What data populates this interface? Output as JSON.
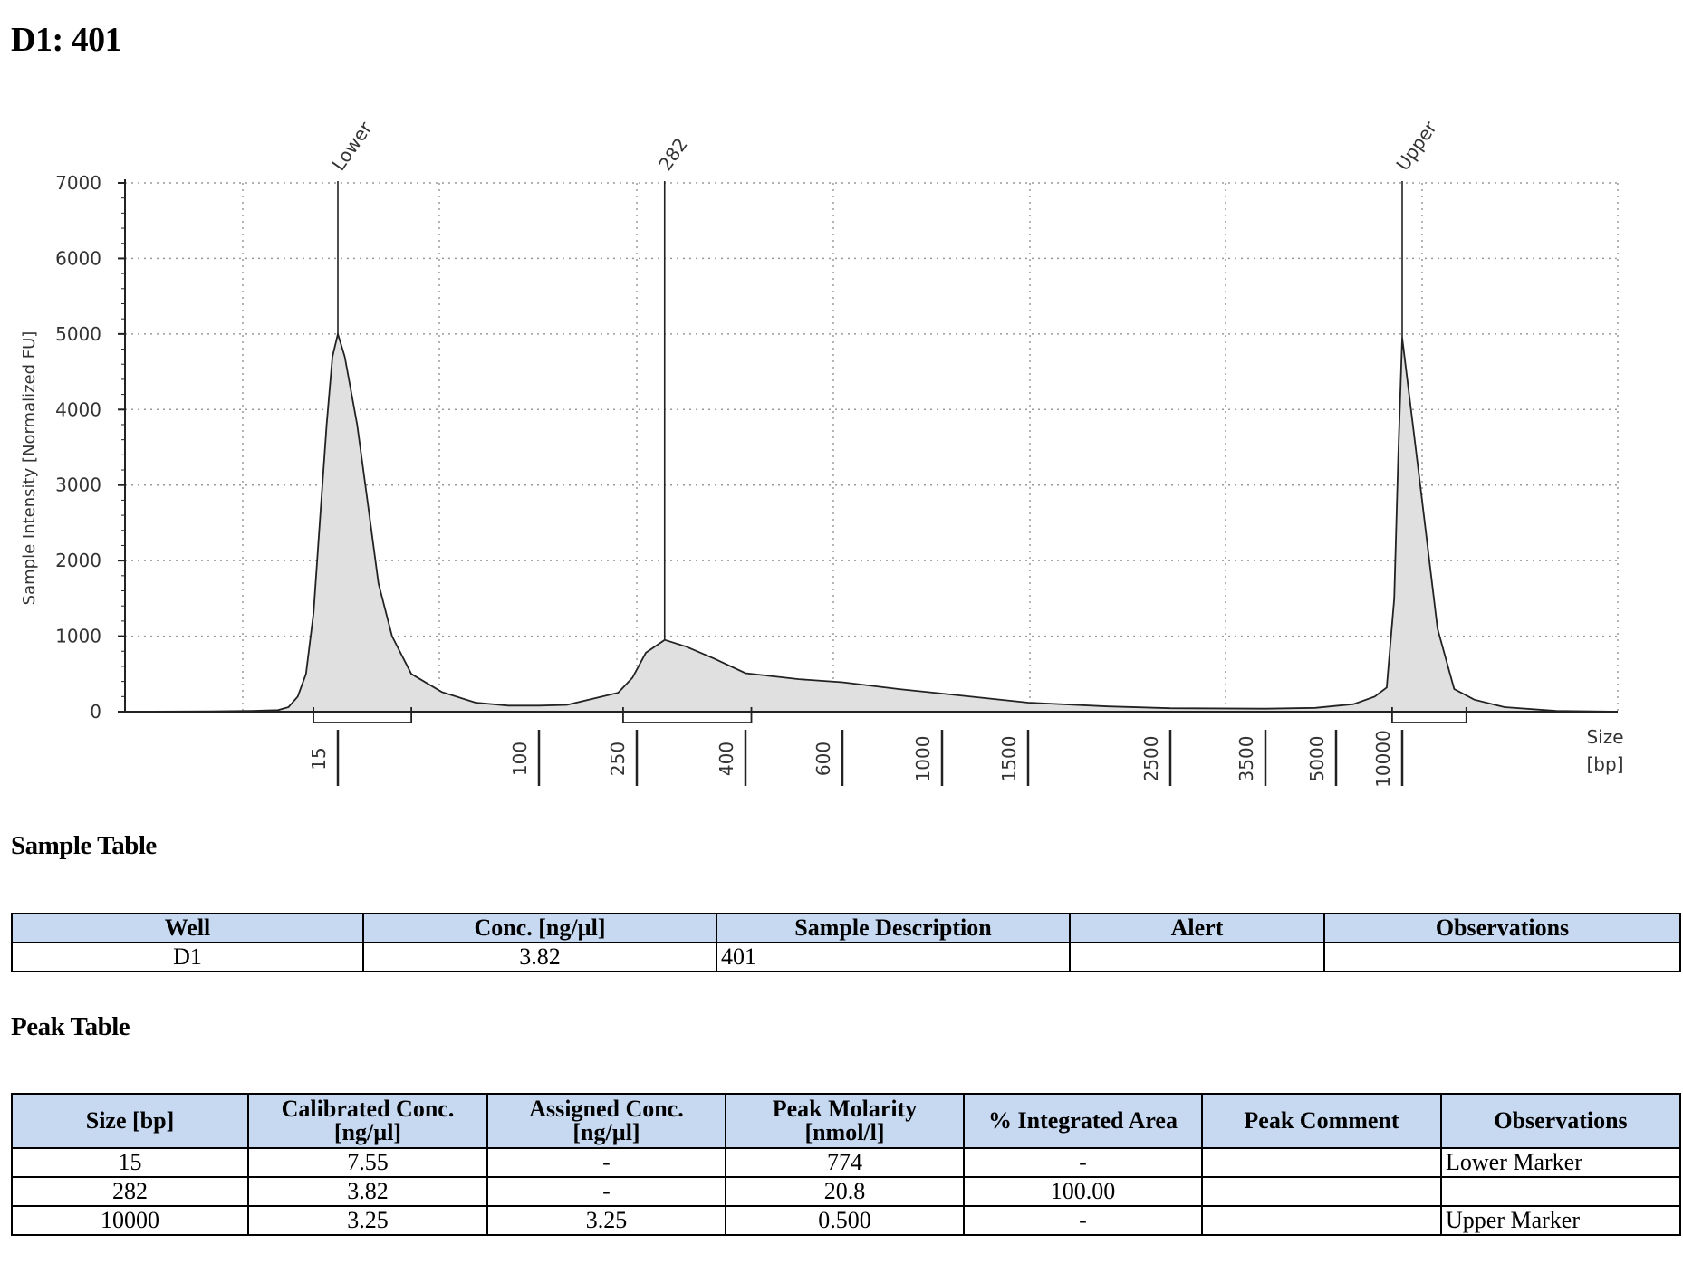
{
  "title": "D1: 401",
  "chart_data": {
    "type": "line",
    "ylabel": "Sample Intensity [Normalized FU]",
    "xlabel": "Size\n[bp]",
    "xlabel_lines": [
      "Size",
      "[bp]"
    ],
    "ylim": [
      0,
      7000
    ],
    "y_ticks": [
      0,
      1000,
      2000,
      3000,
      4000,
      5000,
      6000,
      7000
    ],
    "x_ticks": [
      15,
      100,
      250,
      400,
      600,
      1000,
      1500,
      2500,
      3500,
      5000,
      10000
    ],
    "x_tick_labels": [
      "15",
      "100",
      "250",
      "400",
      "600",
      "1000",
      "1500",
      "2500",
      "3500",
      "5000",
      "10000"
    ],
    "grid": true,
    "peaks": [
      {
        "label": "Lower",
        "size": 15,
        "intensity": 5000
      },
      {
        "label": "282",
        "size": 282,
        "intensity": 950
      },
      {
        "label": "Upper",
        "size": 10000,
        "intensity": 4950
      }
    ],
    "integration_ranges": [
      {
        "from": 11,
        "to": 30
      },
      {
        "from": 220,
        "to": 410
      },
      {
        "from": 9000,
        "to": 11500
      }
    ],
    "trace": [
      [
        1,
        0
      ],
      [
        3,
        5
      ],
      [
        5,
        10
      ],
      [
        7,
        20
      ],
      [
        8,
        60
      ],
      [
        9,
        200
      ],
      [
        10,
        500
      ],
      [
        11,
        1300
      ],
      [
        12,
        2600
      ],
      [
        13,
        3800
      ],
      [
        14,
        4700
      ],
      [
        15,
        5000
      ],
      [
        16,
        4700
      ],
      [
        18,
        3800
      ],
      [
        20,
        2700
      ],
      [
        22,
        1700
      ],
      [
        25,
        1000
      ],
      [
        30,
        500
      ],
      [
        40,
        260
      ],
      [
        55,
        120
      ],
      [
        75,
        80
      ],
      [
        100,
        80
      ],
      [
        130,
        90
      ],
      [
        170,
        180
      ],
      [
        210,
        250
      ],
      [
        240,
        450
      ],
      [
        260,
        780
      ],
      [
        282,
        950
      ],
      [
        310,
        860
      ],
      [
        350,
        700
      ],
      [
        400,
        510
      ],
      [
        500,
        430
      ],
      [
        600,
        390
      ],
      [
        800,
        300
      ],
      [
        1000,
        240
      ],
      [
        1500,
        120
      ],
      [
        2000,
        70
      ],
      [
        2500,
        45
      ],
      [
        3500,
        40
      ],
      [
        4500,
        50
      ],
      [
        6000,
        100
      ],
      [
        7500,
        200
      ],
      [
        8500,
        320
      ],
      [
        9200,
        1500
      ],
      [
        9600,
        3400
      ],
      [
        10000,
        4950
      ],
      [
        10400,
        3000
      ],
      [
        10800,
        1100
      ],
      [
        11200,
        300
      ],
      [
        11700,
        160
      ],
      [
        12500,
        60
      ],
      [
        14000,
        10
      ],
      [
        16000,
        0
      ]
    ]
  },
  "sample_table": {
    "title": "Sample Table",
    "headers": [
      "Well",
      "Conc. [ng/µl]",
      "Sample Description",
      "Alert",
      "Observations"
    ],
    "rows": [
      [
        "D1",
        "3.82",
        "401",
        "",
        ""
      ]
    ]
  },
  "peak_table": {
    "title": "Peak Table",
    "headers": [
      [
        "Size [bp]"
      ],
      [
        "Calibrated Conc.",
        "[ng/µl]"
      ],
      [
        "Assigned Conc.",
        "[ng/µl]"
      ],
      [
        "Peak Molarity",
        "[nmol/l]"
      ],
      [
        "% Integrated Area"
      ],
      [
        "Peak Comment"
      ],
      [
        "Observations"
      ]
    ],
    "rows": [
      [
        "15",
        "7.55",
        "-",
        "774",
        "-",
        "",
        "Lower Marker"
      ],
      [
        "282",
        "3.82",
        "-",
        "20.8",
        "100.00",
        "",
        ""
      ],
      [
        "10000",
        "3.25",
        "3.25",
        "0.500",
        "-",
        "",
        "Upper Marker"
      ]
    ]
  }
}
